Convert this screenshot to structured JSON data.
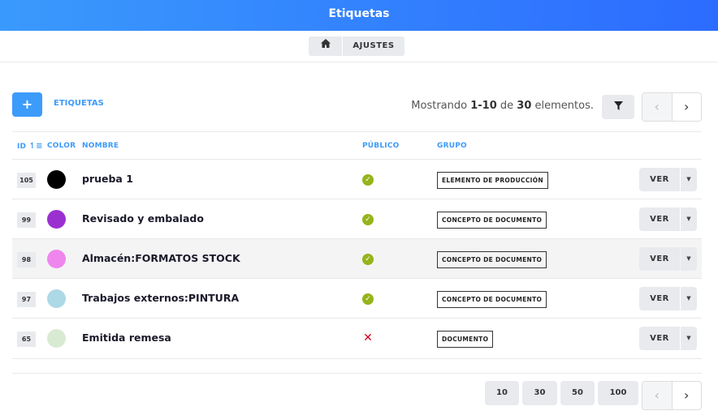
{
  "header": {
    "title": "Etiquetas"
  },
  "breadcrumb": {
    "home_icon": "home-icon",
    "ajustes": "AJUSTES"
  },
  "toolbar": {
    "add_label": "+",
    "etiquetas_link": "ETIQUETAS",
    "showing_prefix": "Mostrando ",
    "showing_range": "1-10",
    "showing_mid": " de ",
    "showing_total": "30",
    "showing_suffix": " elementos.",
    "filter_icon": "filter-icon",
    "prev": "‹",
    "next": "›"
  },
  "columns": {
    "id": "ID",
    "color": "COLOR",
    "nombre": "NOMBRE",
    "publico": "PÚBLICO",
    "grupo": "GRUPO"
  },
  "rows": [
    {
      "id": "105",
      "color": "#000000",
      "nombre": "prueba 1",
      "publico": true,
      "grupo": "ELEMENTO DE PRODUCCIÓN",
      "action": "VER"
    },
    {
      "id": "99",
      "color": "#9b30d0",
      "nombre": "Revisado y embalado",
      "publico": true,
      "grupo": "CONCEPTO DE DOCUMENTO",
      "action": "VER"
    },
    {
      "id": "98",
      "color": "#ee86ee",
      "nombre": "Almacén:FORMATOS STOCK",
      "publico": true,
      "grupo": "CONCEPTO DE DOCUMENTO",
      "action": "VER"
    },
    {
      "id": "97",
      "color": "#add8e6",
      "nombre": "Trabajos externos:PINTURA",
      "publico": true,
      "grupo": "CONCEPTO DE DOCUMENTO",
      "action": "VER"
    },
    {
      "id": "65",
      "color": "#d9ead3",
      "nombre": "Emitida remesa",
      "publico": false,
      "grupo": "DOCUMENTO",
      "action": "VER"
    }
  ],
  "page_sizes": [
    "10",
    "30",
    "50",
    "100"
  ],
  "colors": {
    "accent": "#3d9bfa",
    "check": "#96b41a",
    "cross": "#d0021b"
  }
}
